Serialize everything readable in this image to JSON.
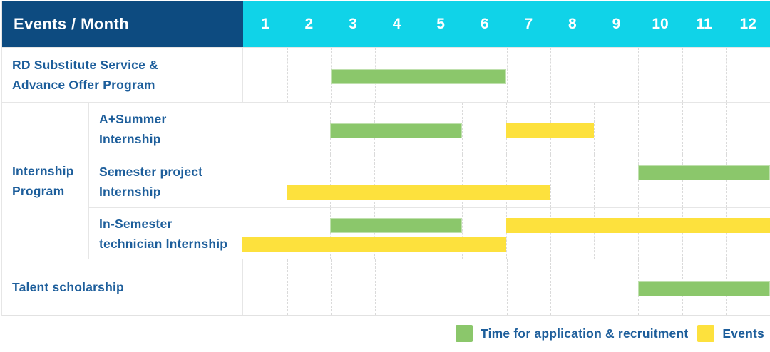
{
  "header": {
    "title": "Events / Month",
    "months": [
      "1",
      "2",
      "3",
      "4",
      "5",
      "6",
      "7",
      "8",
      "9",
      "10",
      "11",
      "12"
    ]
  },
  "colors": {
    "navy": "#0d4b80",
    "cyan": "#10d3e8",
    "green": "#8bc76b",
    "yellow": "#fde13d",
    "label_blue": "#1d5e9b"
  },
  "group_cell": {
    "label": "Internship Program",
    "label_lines": [
      "Internship",
      "Program"
    ]
  },
  "chart_data": {
    "type": "gantt",
    "title": "Events / Month",
    "x_axis": {
      "label": "Month",
      "categories": [
        1,
        2,
        3,
        4,
        5,
        6,
        7,
        8,
        9,
        10,
        11,
        12
      ]
    },
    "grid": "dashed-vertical-month-lines",
    "legend_position": "bottom-right",
    "series_legend": [
      {
        "name": "Time for application & recruitment",
        "color": "#8bc76b"
      },
      {
        "name": "Events",
        "color": "#fde13d"
      }
    ],
    "rows": [
      {
        "id": "rd-substitute-service",
        "label": "RD Substitute Service & Advance Offer Program",
        "label_lines": [
          "RD Substitute Service &",
          "Advance Offer Program"
        ],
        "group": null,
        "intervals": [
          {
            "series": "Time for application & recruitment",
            "color_key": "green",
            "start_month": 3,
            "end_month": 6,
            "lane": "center"
          }
        ]
      },
      {
        "id": "a-plus-summer-internship",
        "label": "A+Summer Internship",
        "label_lines": [
          "A+Summer",
          "Internship"
        ],
        "group": "Internship Program",
        "intervals": [
          {
            "series": "Time for application & recruitment",
            "color_key": "green",
            "start_month": 3,
            "end_month": 5,
            "lane": "center"
          },
          {
            "series": "Events",
            "color_key": "yellow",
            "start_month": 7,
            "end_month": 8,
            "lane": "center"
          }
        ]
      },
      {
        "id": "semester-project-internship",
        "label": "Semester project Internship",
        "label_lines": [
          "Semester project",
          "Internship"
        ],
        "group": "Internship Program",
        "intervals": [
          {
            "series": "Time for application & recruitment",
            "color_key": "green",
            "start_month": 10,
            "end_month": 12,
            "lane": "top"
          },
          {
            "series": "Events",
            "color_key": "yellow",
            "start_month": 2,
            "end_month": 7,
            "lane": "bottom"
          }
        ]
      },
      {
        "id": "in-semester-technician-internship",
        "label": "In-Semester technician Internship",
        "label_lines": [
          "In-Semester",
          "technician Internship"
        ],
        "group": "Internship Program",
        "intervals": [
          {
            "series": "Time for application & recruitment",
            "color_key": "green",
            "start_month": 3,
            "end_month": 5,
            "lane": "top"
          },
          {
            "series": "Events",
            "color_key": "yellow",
            "start_month": 7,
            "end_month": 12,
            "lane": "top"
          },
          {
            "series": "Events",
            "color_key": "yellow",
            "start_month": 1,
            "end_month": 6,
            "lane": "bottom"
          }
        ]
      },
      {
        "id": "talent-scholarship",
        "label": "Talent scholarship",
        "label_lines": [
          "Talent scholarship"
        ],
        "group": null,
        "intervals": [
          {
            "series": "Time for application & recruitment",
            "color_key": "green",
            "start_month": 10,
            "end_month": 12,
            "lane": "center"
          }
        ]
      }
    ]
  },
  "legend": {
    "items": [
      {
        "color_key": "green",
        "label": "Time for application & recruitment"
      },
      {
        "color_key": "yellow",
        "label": "Events"
      }
    ]
  }
}
